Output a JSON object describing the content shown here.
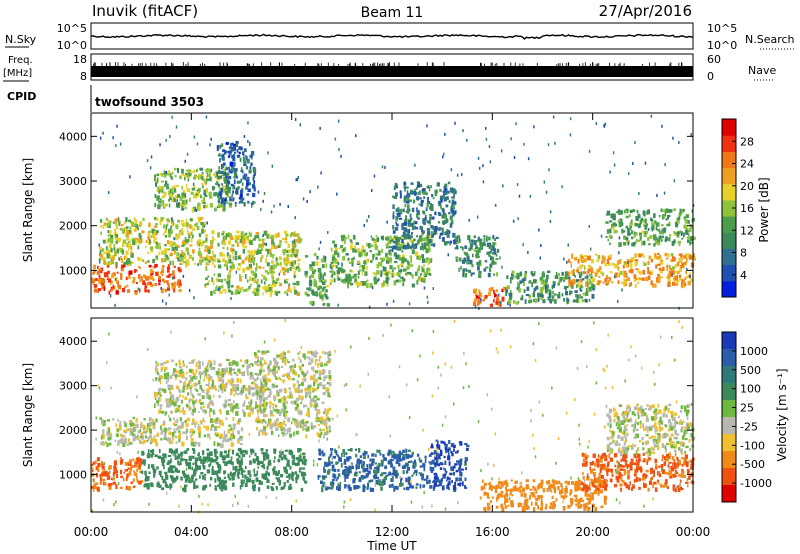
{
  "header": {
    "station": "Inuvik (fitACF)",
    "beam": "Beam 11",
    "date": "27/Apr/2016"
  },
  "top_panels": {
    "nsky": {
      "label": "N.Sky",
      "ticks": [
        "10^5",
        "10^0"
      ]
    },
    "nsearch": {
      "label": "N.Search",
      "ticks": [
        "10^5",
        "10^0"
      ]
    },
    "freq": {
      "label_line1": "Freq.",
      "label_line2": "[MHz]",
      "ticks": [
        "18",
        "8"
      ]
    },
    "nave": {
      "label": "Nave",
      "ticks": [
        "60",
        "0"
      ]
    },
    "cpid": {
      "label": "CPID",
      "value": "twofsound 3503"
    }
  },
  "colors": {
    "power_scale": [
      "#0020e0",
      "#2050b0",
      "#2f6f8f",
      "#3c8a5c",
      "#4c9e4c",
      "#8ec43c",
      "#e8d028",
      "#f0a020",
      "#f07818",
      "#f03010",
      "#e00000"
    ],
    "velocity_scale": [
      "#1a3ab8",
      "#2a5ea8",
      "#2f7a78",
      "#3c8a5c",
      "#6db83f",
      "#c8c8c0",
      "#f0c030",
      "#f08a18",
      "#f05010",
      "#e00000"
    ],
    "ground_scatter": "#b8b8b0"
  },
  "chart_data": [
    {
      "type": "heatmap",
      "name": "power",
      "ylabel": "Slant Range [km]",
      "xlabel": "",
      "ylim": [
        180,
        4500
      ],
      "yticks": [
        "1000",
        "2000",
        "3000",
        "4000"
      ],
      "colorbar": {
        "label": "Power [dB]",
        "ticks": [
          "4",
          "8",
          "12",
          "16",
          "20",
          "24",
          "28"
        ],
        "range": [
          0,
          32
        ]
      },
      "regions": [
        {
          "t0": 0.0,
          "t1": 3.6,
          "r0": 550,
          "r1": 1150,
          "power": 26
        },
        {
          "t0": 0.3,
          "t1": 4.5,
          "r0": 1150,
          "r1": 2200,
          "power": 17
        },
        {
          "t0": 2.5,
          "t1": 5.5,
          "r0": 2400,
          "r1": 3300,
          "power": 15
        },
        {
          "t0": 4.5,
          "t1": 8.3,
          "r0": 500,
          "r1": 1900,
          "power": 17
        },
        {
          "t0": 5.0,
          "t1": 6.5,
          "r0": 2500,
          "r1": 3900,
          "power": 6
        },
        {
          "t0": 8.5,
          "t1": 9.4,
          "r0": 250,
          "r1": 1400,
          "power": 13
        },
        {
          "t0": 9.5,
          "t1": 13.5,
          "r0": 700,
          "r1": 1800,
          "power": 14
        },
        {
          "t0": 12.0,
          "t1": 14.5,
          "r0": 1500,
          "r1": 3000,
          "power": 8
        },
        {
          "t0": 14.5,
          "t1": 16.2,
          "r0": 900,
          "r1": 1800,
          "power": 10
        },
        {
          "t0": 15.2,
          "t1": 16.5,
          "r0": 250,
          "r1": 650,
          "power": 27
        },
        {
          "t0": 16.5,
          "t1": 20.0,
          "r0": 300,
          "r1": 1000,
          "power": 11
        },
        {
          "t0": 19.0,
          "t1": 24.0,
          "r0": 700,
          "r1": 1400,
          "power": 22
        },
        {
          "t0": 20.5,
          "t1": 24.0,
          "r0": 1600,
          "r1": 2400,
          "power": 13
        }
      ]
    },
    {
      "type": "heatmap",
      "name": "velocity",
      "ylabel": "Slant Range [km]",
      "xlabel": "Time UT",
      "ylim": [
        180,
        4500
      ],
      "yticks": [
        "1000",
        "2000",
        "3000",
        "4000"
      ],
      "xticks": [
        "00:00",
        "04:00",
        "08:00",
        "12:00",
        "16:00",
        "20:00",
        "00:00"
      ],
      "xlim_hours": [
        0,
        24
      ],
      "colorbar": {
        "label": "Velocity [m s⁻¹]",
        "ticks": [
          "1000",
          "500",
          "100",
          "25",
          "-25",
          "-100",
          "-500",
          "-1000"
        ]
      },
      "regions": [
        {
          "t0": 0.0,
          "t1": 2.0,
          "r0": 700,
          "r1": 1400,
          "velocity": -300
        },
        {
          "t0": 0.3,
          "t1": 6.0,
          "r0": 1700,
          "r1": 2300,
          "velocity": 0
        },
        {
          "t0": 2.0,
          "t1": 8.5,
          "r0": 700,
          "r1": 1600,
          "velocity": 200
        },
        {
          "t0": 2.5,
          "t1": 7.0,
          "r0": 2400,
          "r1": 3600,
          "velocity": 0
        },
        {
          "t0": 6.5,
          "t1": 9.5,
          "r0": 1900,
          "r1": 3800,
          "velocity": 0
        },
        {
          "t0": 9.0,
          "t1": 13.5,
          "r0": 700,
          "r1": 1600,
          "velocity": 400
        },
        {
          "t0": 13.5,
          "t1": 15.0,
          "r0": 700,
          "r1": 1800,
          "velocity": 800
        },
        {
          "t0": 15.5,
          "t1": 20.5,
          "r0": 250,
          "r1": 900,
          "velocity": -200
        },
        {
          "t0": 19.5,
          "t1": 24.0,
          "r0": 700,
          "r1": 1500,
          "velocity": -400
        },
        {
          "t0": 20.5,
          "t1": 24.0,
          "r0": 1500,
          "r1": 2600,
          "velocity": 0
        }
      ]
    }
  ]
}
